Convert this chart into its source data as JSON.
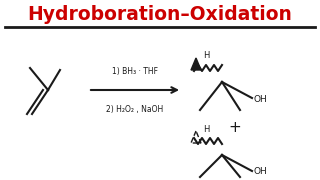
{
  "title": "Hydroboration–Oxidation",
  "title_color": "#cc0000",
  "title_fontsize": 13.5,
  "bg_color": "#ffffff",
  "line_color": "#1a1a1a",
  "reagent_line1": "1) BH₃ · THF",
  "reagent_line2": "2) H₂O₂ , NaOH",
  "plus_sign": "+",
  "figsize": [
    3.2,
    1.8
  ],
  "dpi": 100
}
